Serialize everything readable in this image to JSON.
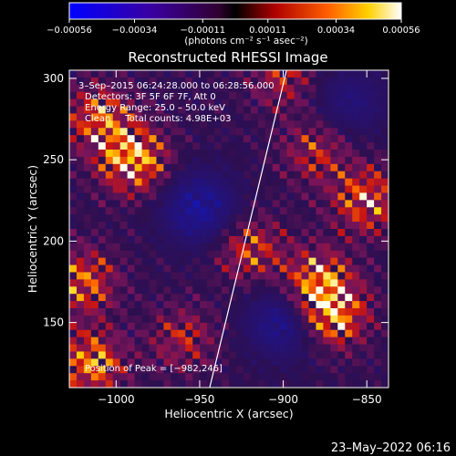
{
  "chart_data": {
    "type": "heatmap",
    "title": "Reconstructed RHESSI Image",
    "xlabel": "Heliocentric X (arcsec)",
    "ylabel": "Heliocentric Y (arcsec)",
    "xlim": [
      -1028,
      -837
    ],
    "ylim": [
      110,
      305
    ],
    "x_ticks": [
      -1000,
      -950,
      -900,
      -850
    ],
    "x_tick_labels": [
      "−1000",
      "−950",
      "−900",
      "−850"
    ],
    "y_ticks": [
      150,
      200,
      250,
      300
    ],
    "y_tick_labels": [
      "150",
      "200",
      "250",
      "300"
    ],
    "colorbar": {
      "min": -0.00056,
      "max": 0.00056,
      "ticks": [
        -0.00056,
        -0.00034,
        -0.00011,
        0.00011,
        0.00034,
        0.00056
      ],
      "tick_labels": [
        "−0.00056",
        "−0.00034",
        "−0.00011",
        "0.00011",
        "0.00034",
        "0.00056"
      ],
      "units": "(photons cm⁻² s⁻¹ asec⁻²)"
    },
    "annotations": [
      "3–Sep–2015 06:24:28.000 to 06:28:56.000",
      "Detectors: 3F 5F 6F 7F, Att 0",
      "Energy Range: 25.0 – 50.0 keV",
      "Clean     Total counts: 4.98E+03"
    ],
    "peak_label": "Position of Peak = [−982,246]",
    "limb_line": [
      [
        -944,
        110
      ],
      [
        -898,
        305
      ]
    ],
    "bright_regions": [
      {
        "x": -990,
        "y": 250,
        "level": 1.0
      },
      {
        "x": -1010,
        "y": 275,
        "level": 0.7
      },
      {
        "x": -870,
        "y": 155,
        "level": 0.9
      },
      {
        "x": -880,
        "y": 175,
        "level": 0.8
      },
      {
        "x": -850,
        "y": 225,
        "level": 0.75
      },
      {
        "x": -1020,
        "y": 175,
        "level": 0.7
      },
      {
        "x": -1015,
        "y": 125,
        "level": 0.8
      },
      {
        "x": -920,
        "y": 195,
        "level": 0.6
      },
      {
        "x": -960,
        "y": 140,
        "level": 0.45
      },
      {
        "x": -880,
        "y": 255,
        "level": 0.5
      },
      {
        "x": -900,
        "y": 300,
        "level": 0.45
      }
    ],
    "dark_regions": [
      {
        "x": -950,
        "y": 220,
        "level": 0.7
      },
      {
        "x": -900,
        "y": 150,
        "level": 0.6
      },
      {
        "x": -860,
        "y": 285,
        "level": 0.4
      }
    ]
  },
  "footer": {
    "timestamp": "23–May–2022 06:16"
  }
}
